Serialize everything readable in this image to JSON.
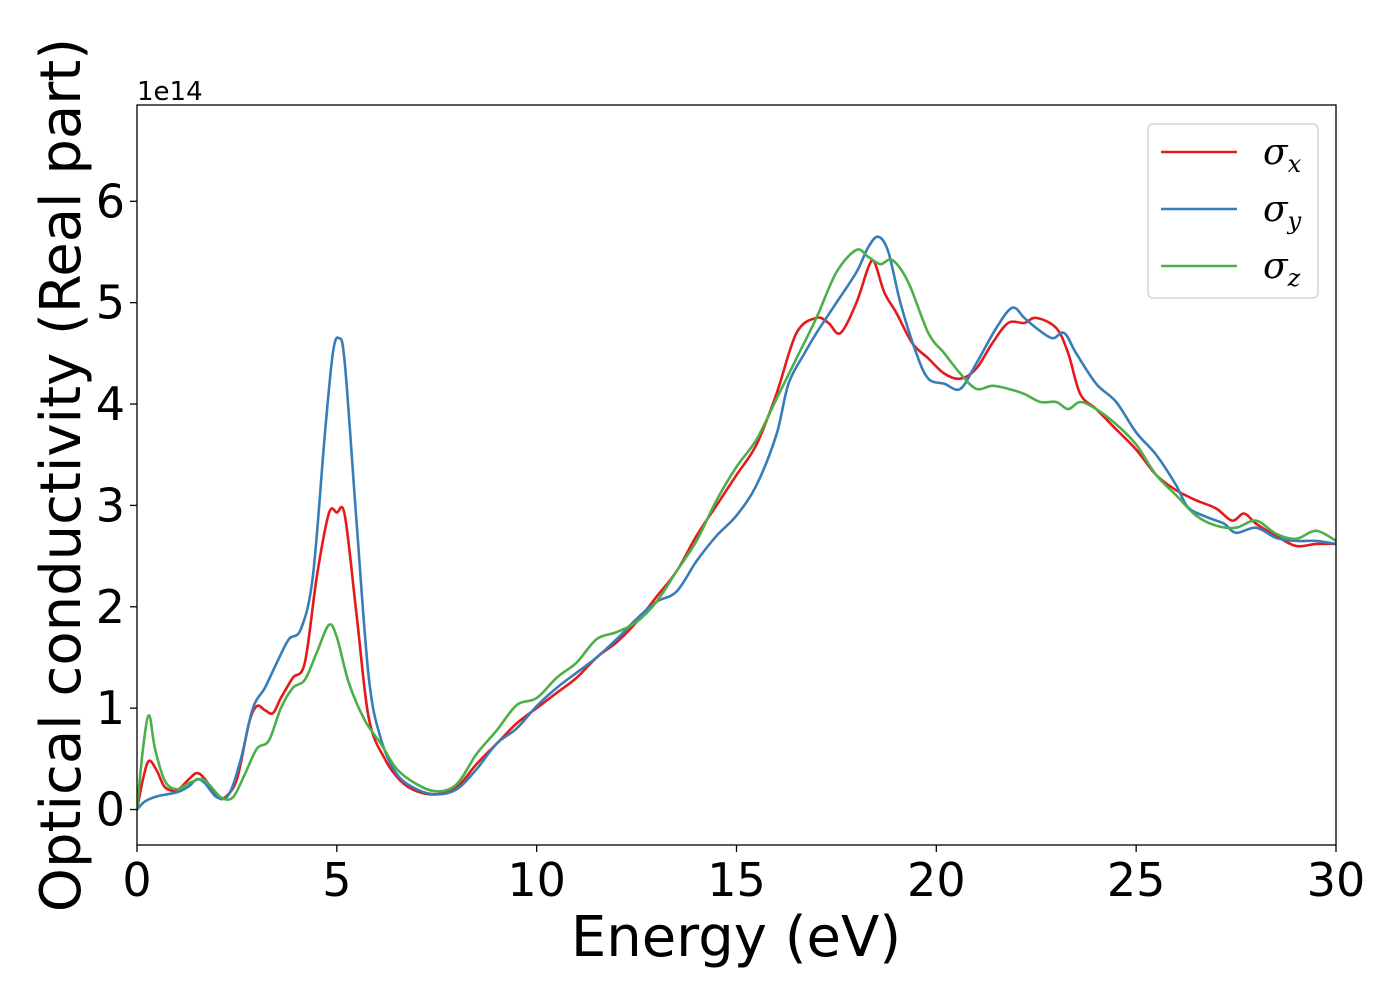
{
  "chart_data": {
    "type": "line",
    "xlabel": "Energy (eV)",
    "ylabel": "Optical conductivity (Real part)",
    "y_offset_label": "1e14",
    "y_scale": 100000000000000.0,
    "xlim": [
      0,
      30
    ],
    "ylim": [
      -0.35,
      6.95
    ],
    "x_ticks": [
      0,
      5,
      10,
      15,
      20,
      25,
      30
    ],
    "y_ticks": [
      0,
      1,
      2,
      3,
      4,
      5,
      6
    ],
    "x_tick_labels": [
      "0",
      "5",
      "10",
      "15",
      "20",
      "25",
      "30"
    ],
    "y_tick_labels": [
      "0",
      "1",
      "2",
      "3",
      "4",
      "5",
      "6"
    ],
    "grid": false,
    "legend_position": "top-right",
    "series": [
      {
        "name": "σ",
        "subscript": "x",
        "color": "#e41a1c",
        "points": [
          [
            0,
            0
          ],
          [
            0.15,
            0.3
          ],
          [
            0.3,
            0.48
          ],
          [
            0.5,
            0.38
          ],
          [
            0.7,
            0.22
          ],
          [
            1.0,
            0.19
          ],
          [
            1.3,
            0.3
          ],
          [
            1.5,
            0.36
          ],
          [
            1.7,
            0.3
          ],
          [
            2.0,
            0.13
          ],
          [
            2.2,
            0.12
          ],
          [
            2.5,
            0.3
          ],
          [
            2.8,
            0.85
          ],
          [
            3.0,
            1.02
          ],
          [
            3.2,
            0.98
          ],
          [
            3.4,
            0.95
          ],
          [
            3.6,
            1.1
          ],
          [
            3.9,
            1.3
          ],
          [
            4.2,
            1.45
          ],
          [
            4.5,
            2.3
          ],
          [
            4.8,
            2.92
          ],
          [
            5.0,
            2.93
          ],
          [
            5.2,
            2.9
          ],
          [
            5.5,
            1.9
          ],
          [
            5.8,
            0.9
          ],
          [
            6.2,
            0.5
          ],
          [
            6.6,
            0.28
          ],
          [
            7.0,
            0.18
          ],
          [
            7.5,
            0.15
          ],
          [
            8.0,
            0.22
          ],
          [
            8.5,
            0.45
          ],
          [
            9.0,
            0.65
          ],
          [
            9.5,
            0.85
          ],
          [
            10.0,
            1.0
          ],
          [
            10.5,
            1.15
          ],
          [
            11.0,
            1.3
          ],
          [
            11.5,
            1.5
          ],
          [
            12.0,
            1.65
          ],
          [
            12.5,
            1.85
          ],
          [
            13.0,
            2.1
          ],
          [
            13.5,
            2.35
          ],
          [
            14.0,
            2.7
          ],
          [
            14.5,
            3.0
          ],
          [
            15.0,
            3.3
          ],
          [
            15.5,
            3.6
          ],
          [
            16.0,
            4.1
          ],
          [
            16.5,
            4.7
          ],
          [
            17.0,
            4.85
          ],
          [
            17.3,
            4.8
          ],
          [
            17.6,
            4.7
          ],
          [
            18.0,
            5.0
          ],
          [
            18.3,
            5.35
          ],
          [
            18.45,
            5.4
          ],
          [
            18.7,
            5.1
          ],
          [
            19.0,
            4.9
          ],
          [
            19.4,
            4.6
          ],
          [
            19.8,
            4.45
          ],
          [
            20.2,
            4.3
          ],
          [
            20.6,
            4.25
          ],
          [
            21.0,
            4.35
          ],
          [
            21.4,
            4.6
          ],
          [
            21.8,
            4.8
          ],
          [
            22.2,
            4.8
          ],
          [
            22.5,
            4.85
          ],
          [
            23.0,
            4.75
          ],
          [
            23.3,
            4.5
          ],
          [
            23.6,
            4.1
          ],
          [
            24.0,
            3.95
          ],
          [
            24.5,
            3.75
          ],
          [
            25.0,
            3.55
          ],
          [
            25.5,
            3.3
          ],
          [
            26.0,
            3.15
          ],
          [
            26.5,
            3.05
          ],
          [
            27.0,
            2.97
          ],
          [
            27.4,
            2.85
          ],
          [
            27.7,
            2.92
          ],
          [
            28.0,
            2.82
          ],
          [
            28.5,
            2.7
          ],
          [
            29.0,
            2.6
          ],
          [
            29.5,
            2.62
          ],
          [
            30.0,
            2.62
          ]
        ]
      },
      {
        "name": "σ",
        "subscript": "y",
        "color": "#377eb8",
        "points": [
          [
            0,
            0
          ],
          [
            0.2,
            0.08
          ],
          [
            0.5,
            0.13
          ],
          [
            1.0,
            0.17
          ],
          [
            1.3,
            0.23
          ],
          [
            1.5,
            0.3
          ],
          [
            1.7,
            0.26
          ],
          [
            2.0,
            0.12
          ],
          [
            2.3,
            0.15
          ],
          [
            2.6,
            0.5
          ],
          [
            2.9,
            1.0
          ],
          [
            3.2,
            1.2
          ],
          [
            3.5,
            1.45
          ],
          [
            3.8,
            1.68
          ],
          [
            4.1,
            1.78
          ],
          [
            4.4,
            2.3
          ],
          [
            4.7,
            3.7
          ],
          [
            4.9,
            4.5
          ],
          [
            5.05,
            4.65
          ],
          [
            5.2,
            4.4
          ],
          [
            5.5,
            2.8
          ],
          [
            5.8,
            1.3
          ],
          [
            6.1,
            0.7
          ],
          [
            6.5,
            0.35
          ],
          [
            7.0,
            0.2
          ],
          [
            7.5,
            0.15
          ],
          [
            8.0,
            0.2
          ],
          [
            8.5,
            0.4
          ],
          [
            9.0,
            0.65
          ],
          [
            9.5,
            0.8
          ],
          [
            10.0,
            1.02
          ],
          [
            10.5,
            1.2
          ],
          [
            11.0,
            1.35
          ],
          [
            11.5,
            1.5
          ],
          [
            12.0,
            1.68
          ],
          [
            12.5,
            1.88
          ],
          [
            13.0,
            2.05
          ],
          [
            13.5,
            2.15
          ],
          [
            14.0,
            2.45
          ],
          [
            14.5,
            2.7
          ],
          [
            15.0,
            2.9
          ],
          [
            15.5,
            3.2
          ],
          [
            16.0,
            3.7
          ],
          [
            16.3,
            4.2
          ],
          [
            16.7,
            4.5
          ],
          [
            17.0,
            4.7
          ],
          [
            17.5,
            5.0
          ],
          [
            18.0,
            5.3
          ],
          [
            18.3,
            5.55
          ],
          [
            18.55,
            5.65
          ],
          [
            18.8,
            5.5
          ],
          [
            19.1,
            5.0
          ],
          [
            19.5,
            4.5
          ],
          [
            19.8,
            4.25
          ],
          [
            20.2,
            4.2
          ],
          [
            20.6,
            4.15
          ],
          [
            21.0,
            4.4
          ],
          [
            21.5,
            4.75
          ],
          [
            21.9,
            4.95
          ],
          [
            22.2,
            4.85
          ],
          [
            22.5,
            4.75
          ],
          [
            22.9,
            4.65
          ],
          [
            23.2,
            4.7
          ],
          [
            23.5,
            4.5
          ],
          [
            24.0,
            4.2
          ],
          [
            24.5,
            4.02
          ],
          [
            25.0,
            3.72
          ],
          [
            25.5,
            3.5
          ],
          [
            26.0,
            3.2
          ],
          [
            26.3,
            2.98
          ],
          [
            26.8,
            2.88
          ],
          [
            27.2,
            2.82
          ],
          [
            27.5,
            2.73
          ],
          [
            28.0,
            2.78
          ],
          [
            28.5,
            2.68
          ],
          [
            29.0,
            2.65
          ],
          [
            29.5,
            2.65
          ],
          [
            30.0,
            2.62
          ]
        ]
      },
      {
        "name": "σ",
        "subscript": "z",
        "color": "#4daf4a",
        "points": [
          [
            0,
            0
          ],
          [
            0.15,
            0.6
          ],
          [
            0.3,
            0.93
          ],
          [
            0.45,
            0.6
          ],
          [
            0.7,
            0.28
          ],
          [
            1.0,
            0.2
          ],
          [
            1.3,
            0.26
          ],
          [
            1.6,
            0.3
          ],
          [
            1.8,
            0.25
          ],
          [
            2.1,
            0.12
          ],
          [
            2.4,
            0.12
          ],
          [
            2.7,
            0.35
          ],
          [
            3.0,
            0.6
          ],
          [
            3.3,
            0.68
          ],
          [
            3.6,
            1.0
          ],
          [
            3.9,
            1.2
          ],
          [
            4.2,
            1.28
          ],
          [
            4.5,
            1.55
          ],
          [
            4.8,
            1.82
          ],
          [
            5.0,
            1.7
          ],
          [
            5.3,
            1.25
          ],
          [
            5.7,
            0.88
          ],
          [
            6.1,
            0.65
          ],
          [
            6.5,
            0.4
          ],
          [
            7.0,
            0.25
          ],
          [
            7.5,
            0.18
          ],
          [
            8.0,
            0.25
          ],
          [
            8.5,
            0.55
          ],
          [
            9.0,
            0.78
          ],
          [
            9.5,
            1.03
          ],
          [
            10.0,
            1.1
          ],
          [
            10.5,
            1.3
          ],
          [
            11.0,
            1.45
          ],
          [
            11.5,
            1.68
          ],
          [
            12.0,
            1.75
          ],
          [
            12.5,
            1.85
          ],
          [
            13.0,
            2.05
          ],
          [
            13.5,
            2.35
          ],
          [
            14.0,
            2.65
          ],
          [
            14.5,
            3.05
          ],
          [
            15.0,
            3.38
          ],
          [
            15.5,
            3.65
          ],
          [
            16.0,
            4.05
          ],
          [
            16.5,
            4.45
          ],
          [
            17.0,
            4.85
          ],
          [
            17.5,
            5.3
          ],
          [
            18.0,
            5.52
          ],
          [
            18.3,
            5.45
          ],
          [
            18.6,
            5.38
          ],
          [
            18.9,
            5.42
          ],
          [
            19.3,
            5.2
          ],
          [
            19.8,
            4.7
          ],
          [
            20.2,
            4.5
          ],
          [
            20.6,
            4.3
          ],
          [
            21.0,
            4.15
          ],
          [
            21.4,
            4.18
          ],
          [
            21.8,
            4.15
          ],
          [
            22.2,
            4.1
          ],
          [
            22.6,
            4.02
          ],
          [
            23.0,
            4.02
          ],
          [
            23.3,
            3.95
          ],
          [
            23.6,
            4.02
          ],
          [
            24.0,
            3.95
          ],
          [
            24.5,
            3.8
          ],
          [
            25.0,
            3.6
          ],
          [
            25.5,
            3.3
          ],
          [
            26.0,
            3.1
          ],
          [
            26.5,
            2.9
          ],
          [
            27.0,
            2.8
          ],
          [
            27.5,
            2.78
          ],
          [
            28.0,
            2.85
          ],
          [
            28.5,
            2.72
          ],
          [
            29.0,
            2.67
          ],
          [
            29.5,
            2.75
          ],
          [
            30.0,
            2.65
          ]
        ]
      }
    ]
  }
}
